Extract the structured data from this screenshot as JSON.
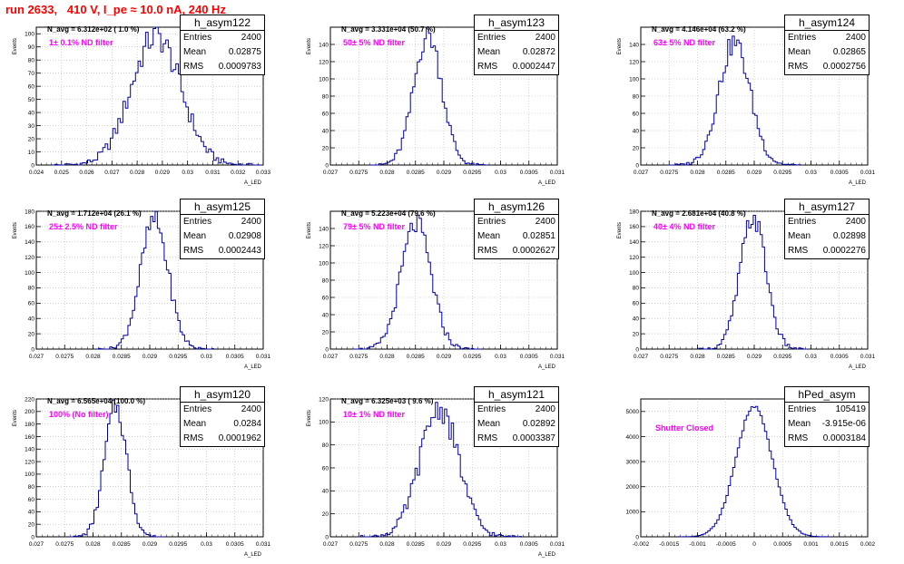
{
  "page_title": "run 2633,   410 V, I_pe ≈ 10.0 nA, 240 Hz",
  "colors": {
    "hist": "#0000a0",
    "filter_label": "#ff00ff",
    "title": "#ff0000",
    "grid": "#b4b4b4"
  },
  "chart_data": [
    {
      "type": "bar",
      "name": "h_asym122",
      "title": "h_asym122",
      "navg_label": "N_avg = 6.312e+02 ( 1.0 %)",
      "filter_label": "1± 0.1% ND filter",
      "ylabel": "Events",
      "xlabel": "A_LED",
      "xlim": [
        0.024,
        0.033
      ],
      "ylim": [
        0,
        105
      ],
      "yticks": [
        0,
        10,
        20,
        30,
        40,
        50,
        60,
        70,
        80,
        90,
        100
      ],
      "xtick_labels": [
        "0.024",
        "0.025",
        "0.026",
        "0.027",
        "0.028",
        "0.029",
        "0.03",
        "0.031",
        "0.032",
        "0.033"
      ],
      "dist": {
        "mean": 0.02875,
        "sigma": 0.00098,
        "peak": 98,
        "bin": 0.0001
      },
      "stats": [
        {
          "label": "Entries",
          "value": "2400"
        },
        {
          "label": "Mean",
          "value": "0.02875"
        },
        {
          "label": "RMS",
          "value": "0.0009783"
        }
      ]
    },
    {
      "type": "bar",
      "name": "h_asym123",
      "title": "h_asym123",
      "navg_label": "N_avg = 3.331e+04 (50.7 %)",
      "filter_label": "50± 5% ND filter",
      "ylabel": "Events",
      "xlabel": "A_LED",
      "xlim": [
        0.027,
        0.031
      ],
      "ylim": [
        0,
        160
      ],
      "yticks": [
        0,
        20,
        40,
        60,
        80,
        100,
        120,
        140
      ],
      "xtick_labels": [
        "0.027",
        "0.0275",
        "0.028",
        "0.0285",
        "0.029",
        "0.0295",
        "0.03",
        "0.0305",
        "0.031"
      ],
      "dist": {
        "mean": 0.02872,
        "sigma": 0.000245,
        "peak": 152,
        "bin": 4e-05
      },
      "stats": [
        {
          "label": "Entries",
          "value": "2400"
        },
        {
          "label": "Mean",
          "value": "0.02872"
        },
        {
          "label": "RMS",
          "value": "0.0002447"
        }
      ]
    },
    {
      "type": "bar",
      "name": "h_asym124",
      "title": "h_asym124",
      "navg_label": "N_avg = 4.146e+04 (63.2 %)",
      "filter_label": "63± 5% ND filter",
      "ylabel": "Events",
      "xlabel": "A_LED",
      "xlim": [
        0.027,
        0.031
      ],
      "ylim": [
        0,
        160
      ],
      "yticks": [
        0,
        20,
        40,
        60,
        80,
        100,
        120,
        140
      ],
      "xtick_labels": [
        "0.027",
        "0.0275",
        "0.028",
        "0.0285",
        "0.029",
        "0.0295",
        "0.03",
        "0.0305",
        "0.031"
      ],
      "dist": {
        "mean": 0.02865,
        "sigma": 0.000276,
        "peak": 142,
        "bin": 4e-05
      },
      "stats": [
        {
          "label": "Entries",
          "value": "2400"
        },
        {
          "label": "Mean",
          "value": "0.02865"
        },
        {
          "label": "RMS",
          "value": "0.0002756"
        }
      ]
    },
    {
      "type": "bar",
      "name": "h_asym125",
      "title": "h_asym125",
      "navg_label": "N_avg = 1.712e+04 (26.1 %)",
      "filter_label": "25± 2.5% ND filter",
      "ylabel": "Events",
      "xlabel": "A_LED",
      "xlim": [
        0.027,
        0.031
      ],
      "ylim": [
        0,
        180
      ],
      "yticks": [
        0,
        20,
        40,
        60,
        80,
        100,
        120,
        140,
        160,
        180
      ],
      "xtick_labels": [
        "0.027",
        "0.0275",
        "0.028",
        "0.0285",
        "0.029",
        "0.0295",
        "0.03",
        "0.0305",
        "0.031"
      ],
      "dist": {
        "mean": 0.02908,
        "sigma": 0.000244,
        "peak": 168,
        "bin": 4e-05
      },
      "stats": [
        {
          "label": "Entries",
          "value": "2400"
        },
        {
          "label": "Mean",
          "value": "0.02908"
        },
        {
          "label": "RMS",
          "value": "0.0002443"
        }
      ]
    },
    {
      "type": "bar",
      "name": "h_asym126",
      "title": "h_asym126",
      "navg_label": "N_avg = 5.223e+04 (79.6 %)",
      "filter_label": "79± 5% ND filter",
      "ylabel": "Events",
      "xlabel": "A_LED",
      "xlim": [
        0.027,
        0.031
      ],
      "ylim": [
        0,
        160
      ],
      "yticks": [
        0,
        20,
        40,
        60,
        80,
        100,
        120,
        140
      ],
      "xtick_labels": [
        "0.027",
        "0.0275",
        "0.028",
        "0.0285",
        "0.029",
        "0.0295",
        "0.03",
        "0.0305",
        "0.031"
      ],
      "dist": {
        "mean": 0.02851,
        "sigma": 0.000263,
        "peak": 145,
        "bin": 4e-05
      },
      "stats": [
        {
          "label": "Entries",
          "value": "2400"
        },
        {
          "label": "Mean",
          "value": "0.02851"
        },
        {
          "label": "RMS",
          "value": "0.0002627"
        }
      ]
    },
    {
      "type": "bar",
      "name": "h_asym127",
      "title": "h_asym127",
      "navg_label": "N_avg = 2.681e+04 (40.8 %)",
      "filter_label": "40± 4% ND filter",
      "ylabel": "Events",
      "xlabel": "A_LED",
      "xlim": [
        0.027,
        0.031
      ],
      "ylim": [
        0,
        180
      ],
      "yticks": [
        0,
        20,
        40,
        60,
        80,
        100,
        120,
        140,
        160,
        180
      ],
      "xtick_labels": [
        "0.027",
        "0.0275",
        "0.028",
        "0.0285",
        "0.029",
        "0.0295",
        "0.03",
        "0.0305",
        "0.031"
      ],
      "dist": {
        "mean": 0.02898,
        "sigma": 0.000228,
        "peak": 172,
        "bin": 4e-05
      },
      "stats": [
        {
          "label": "Entries",
          "value": "2400"
        },
        {
          "label": "Mean",
          "value": "0.02898"
        },
        {
          "label": "RMS",
          "value": "0.0002276"
        }
      ]
    },
    {
      "type": "bar",
      "name": "h_asym120",
      "title": "h_asym120",
      "navg_label": "N_avg = 6.565e+04 (100.0 %)",
      "filter_label": "100% (No filter)",
      "ylabel": "Events",
      "xlabel": "A_LED",
      "xlim": [
        0.027,
        0.031
      ],
      "ylim": [
        0,
        220
      ],
      "yticks": [
        0,
        20,
        40,
        60,
        80,
        100,
        120,
        140,
        160,
        180,
        200,
        220
      ],
      "xtick_labels": [
        "0.027",
        "0.0275",
        "0.028",
        "0.0285",
        "0.029",
        "0.0295",
        "0.03",
        "0.0305",
        "0.031"
      ],
      "dist": {
        "mean": 0.0284,
        "sigma": 0.000196,
        "peak": 208,
        "bin": 4e-05
      },
      "stats": [
        {
          "label": "Entries",
          "value": "2400"
        },
        {
          "label": "Mean",
          "value": "0.0284"
        },
        {
          "label": "RMS",
          "value": "0.0001962"
        }
      ]
    },
    {
      "type": "bar",
      "name": "h_asym121",
      "title": "h_asym121",
      "navg_label": "N_avg = 6.325e+03 ( 9.6 %)",
      "filter_label": "10± 1% ND filter",
      "ylabel": "Events",
      "xlabel": "A_LED",
      "xlim": [
        0.027,
        0.031
      ],
      "ylim": [
        0,
        120
      ],
      "yticks": [
        0,
        20,
        40,
        60,
        80,
        100,
        120
      ],
      "xtick_labels": [
        "0.027",
        "0.0275",
        "0.028",
        "0.0285",
        "0.029",
        "0.0295",
        "0.03",
        "0.0305",
        "0.031"
      ],
      "dist": {
        "mean": 0.02892,
        "sigma": 0.00034,
        "peak": 112,
        "bin": 4e-05
      },
      "stats": [
        {
          "label": "Entries",
          "value": "2400"
        },
        {
          "label": "Mean",
          "value": "0.02892"
        },
        {
          "label": "RMS",
          "value": "0.0003387"
        }
      ]
    },
    {
      "type": "bar",
      "name": "hPed_asym",
      "title": "hPed_asym",
      "navg_label": "",
      "filter_label": "Shutter Closed",
      "ylabel": "",
      "xlabel": "",
      "xlim": [
        -0.002,
        0.002
      ],
      "ylim": [
        0,
        5500
      ],
      "yticks": [
        0,
        1000,
        2000,
        3000,
        4000,
        5000
      ],
      "xtick_labels": [
        "-0.002",
        "-0.0015",
        "-0.001",
        "-0.0005",
        "0",
        "0.0005",
        "0.001",
        "0.0015",
        "0.002"
      ],
      "dist": {
        "mean": -3.915e-06,
        "sigma": 0.000318,
        "peak": 5180,
        "bin": 4e-05
      },
      "stats": [
        {
          "label": "Entries",
          "value": "105419"
        },
        {
          "label": "Mean",
          "value": "-3.915e-06"
        },
        {
          "label": "RMS",
          "value": "0.0003184"
        }
      ]
    }
  ]
}
